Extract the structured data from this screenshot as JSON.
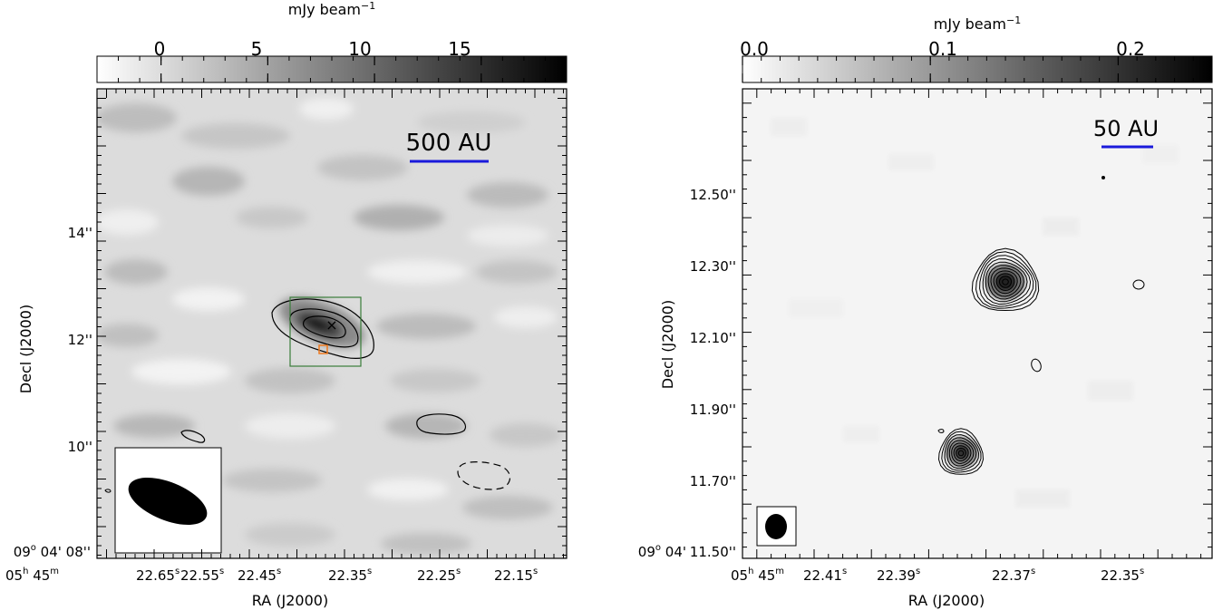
{
  "chart_data": [
    {
      "type": "heatmap",
      "panel": "left",
      "colorbar": {
        "label": "mJy beam",
        "label_exponent": "−1",
        "ticks": [
          "0",
          "5",
          "10",
          "15"
        ],
        "tick_values": [
          0,
          5,
          10,
          15
        ],
        "range": [
          -3,
          19
        ],
        "colormap": "white-to-black greyscale"
      },
      "xlabel": "RA (J2000)",
      "ylabel": "Decl (J2000)",
      "x_ticks": [
        {
          "main": "05",
          "sup1": "h",
          "mid": " 45",
          "sup2": "m",
          "value": ""
        },
        {
          "main": "22.65",
          "sup": "s"
        },
        {
          "main": "22.55",
          "sup": "s"
        },
        {
          "main": "22.45",
          "sup": "s"
        },
        {
          "main": "22.35",
          "sup": "s"
        },
        {
          "main": "22.25",
          "sup": "s"
        },
        {
          "main": "22.15",
          "sup": "s"
        }
      ],
      "y_ticks": [
        "14''",
        "12''",
        "10''"
      ],
      "y_origin": {
        "deg": "09",
        "deg_sup": "o",
        "rest": " 04' 08''"
      },
      "scale_bar": {
        "label": "500 AU",
        "color": "#1a1adb"
      },
      "markers": [
        {
          "symbol": "×",
          "color": "#f07a1e",
          "name": "cross"
        },
        {
          "symbol": "□",
          "color": "#f07a1e",
          "name": "square"
        }
      ],
      "box_color": "#3a7d3a",
      "contours": {
        "positive": 3,
        "negative": 1
      },
      "beam_inset": true
    },
    {
      "type": "heatmap",
      "panel": "right",
      "colorbar": {
        "label": "mJy beam",
        "label_exponent": "−1",
        "ticks": [
          "0.0",
          "0.1",
          "0.2"
        ],
        "tick_values": [
          0.0,
          0.1,
          0.2
        ],
        "range": [
          0.0,
          0.25
        ],
        "colormap": "white-to-black greyscale"
      },
      "xlabel": "RA (J2000)",
      "ylabel": "Decl (J2000)",
      "x_ticks": [
        {
          "main": "05",
          "sup1": "h",
          "mid": " 45",
          "sup2": "m",
          "value": ""
        },
        {
          "main": "22.41",
          "sup": "s"
        },
        {
          "main": "22.39",
          "sup": "s"
        },
        {
          "main": "22.37",
          "sup": "s"
        },
        {
          "main": "22.35",
          "sup": "s"
        }
      ],
      "y_ticks": [
        "12.50''",
        "12.30''",
        "12.10''",
        "11.90''",
        "11.70''",
        "11.50''"
      ],
      "y_origin": {
        "deg": "09",
        "deg_sup": "o",
        "rest": " 04'"
      },
      "scale_bar": {
        "label": "50 AU",
        "color": "#1a1adb"
      },
      "sources": [
        {
          "name": "northern-source",
          "levels": 11
        },
        {
          "name": "southern-source",
          "levels": 9
        }
      ],
      "beam_inset": true
    }
  ]
}
